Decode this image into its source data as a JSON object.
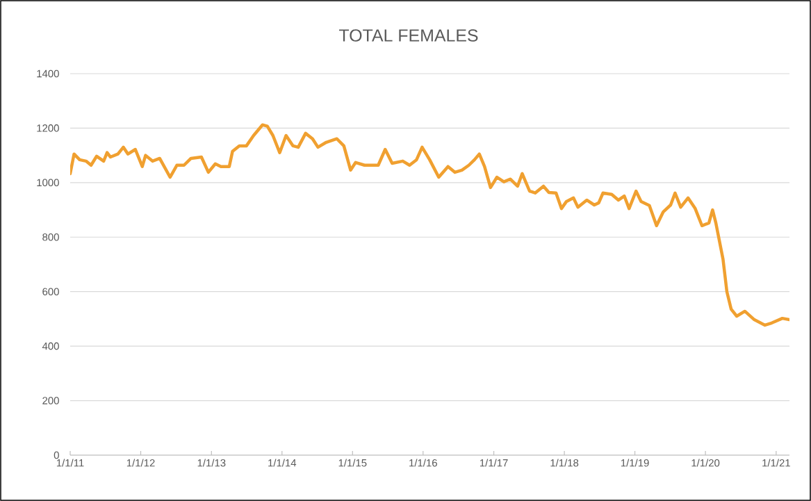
{
  "chart_data": {
    "type": "line",
    "title": "TOTAL FEMALES",
    "x": [
      "2011-01-01",
      "2011-01-21",
      "2011-02-19",
      "2011-03-24",
      "2011-04-19",
      "2011-05-18",
      "2011-06-23",
      "2011-07-11",
      "2011-07-28",
      "2011-09-05",
      "2011-10-03",
      "2011-10-27",
      "2011-12-04",
      "2012-01-09",
      "2012-01-26",
      "2012-03-02",
      "2012-04-08",
      "2012-06-01",
      "2012-07-06",
      "2012-08-12",
      "2012-09-17",
      "2012-11-10",
      "2012-12-16",
      "2013-01-21",
      "2013-02-19",
      "2013-04-03",
      "2013-04-20",
      "2013-05-25",
      "2013-07-01",
      "2013-08-07",
      "2013-09-22",
      "2013-10-17",
      "2013-11-15",
      "2013-12-20",
      "2014-01-22",
      "2014-02-27",
      "2014-03-26",
      "2014-05-03",
      "2014-06-08",
      "2014-07-06",
      "2014-08-18",
      "2014-10-12",
      "2014-11-17",
      "2014-12-22",
      "2015-01-17",
      "2015-03-04",
      "2015-05-14",
      "2015-06-19",
      "2015-07-25",
      "2015-09-18",
      "2015-10-23",
      "2015-11-28",
      "2015-12-27",
      "2016-02-04",
      "2016-03-22",
      "2016-05-09",
      "2016-06-14",
      "2016-07-20",
      "2016-08-25",
      "2016-09-23",
      "2016-10-18",
      "2016-11-14",
      "2016-12-15",
      "2017-01-17",
      "2017-02-22",
      "2017-03-27",
      "2017-05-04",
      "2017-05-28",
      "2017-07-05",
      "2017-08-03",
      "2017-09-15",
      "2017-10-13",
      "2017-11-19",
      "2017-12-17",
      "2018-01-12",
      "2018-02-17",
      "2018-03-12",
      "2018-04-27",
      "2018-06-05",
      "2018-06-28",
      "2018-07-20",
      "2018-09-03",
      "2018-10-08",
      "2018-11-07",
      "2018-12-02",
      "2019-01-07",
      "2019-02-02",
      "2019-03-17",
      "2019-04-23",
      "2019-05-28",
      "2019-07-05",
      "2019-07-28",
      "2019-08-26",
      "2019-10-03",
      "2019-11-09",
      "2019-12-14",
      "2020-01-19",
      "2020-02-07",
      "2020-02-24",
      "2020-04-01",
      "2020-04-21",
      "2020-05-13",
      "2020-06-11",
      "2020-07-23",
      "2020-09-10",
      "2020-11-04",
      "2020-12-09",
      "2021-02-02",
      "2021-03-11"
    ],
    "series": [
      {
        "color": "#f0a030",
        "values": [
          1033,
          1105,
          1084,
          1079,
          1064,
          1097,
          1079,
          1110,
          1094,
          1105,
          1130,
          1105,
          1122,
          1059,
          1100,
          1079,
          1089,
          1020,
          1064,
          1064,
          1089,
          1094,
          1038,
          1069,
          1059,
          1059,
          1115,
          1135,
          1135,
          1173,
          1212,
          1207,
          1173,
          1110,
          1173,
          1135,
          1130,
          1181,
          1161,
          1130,
          1148,
          1161,
          1135,
          1046,
          1074,
          1064,
          1064,
          1122,
          1071,
          1079,
          1064,
          1084,
          1130,
          1084,
          1020,
          1059,
          1038,
          1046,
          1064,
          1084,
          1105,
          1059,
          982,
          1020,
          1003,
          1013,
          987,
          1033,
          969,
          962,
          987,
          964,
          962,
          905,
          931,
          944,
          910,
          936,
          918,
          926,
          962,
          957,
          936,
          951,
          905,
          969,
          931,
          916,
          842,
          893,
          918,
          962,
          910,
          944,
          905,
          842,
          852,
          900,
          852,
          719,
          600,
          536,
          510,
          528,
          497,
          477,
          485,
          502,
          497
        ]
      }
    ],
    "xlim": [
      "2011-01-01",
      "2021-03-11"
    ],
    "xticks": [
      {
        "value": "2011-01-01",
        "label": "1/1/11"
      },
      {
        "value": "2012-01-01",
        "label": "1/1/12"
      },
      {
        "value": "2013-01-01",
        "label": "1/1/13"
      },
      {
        "value": "2014-01-01",
        "label": "1/1/14"
      },
      {
        "value": "2015-01-01",
        "label": "1/1/15"
      },
      {
        "value": "2016-01-01",
        "label": "1/1/16"
      },
      {
        "value": "2017-01-01",
        "label": "1/1/17"
      },
      {
        "value": "2018-01-01",
        "label": "1/1/18"
      },
      {
        "value": "2019-01-01",
        "label": "1/1/19"
      },
      {
        "value": "2020-01-01",
        "label": "1/1/20"
      },
      {
        "value": "2021-01-01",
        "label": "1/1/21"
      }
    ],
    "ylim": [
      0,
      1400
    ],
    "yticks": [
      0,
      200,
      400,
      600,
      800,
      1000,
      1200,
      1400
    ],
    "grid": "y",
    "legend": false,
    "marker": "none",
    "line_style": "solid"
  }
}
